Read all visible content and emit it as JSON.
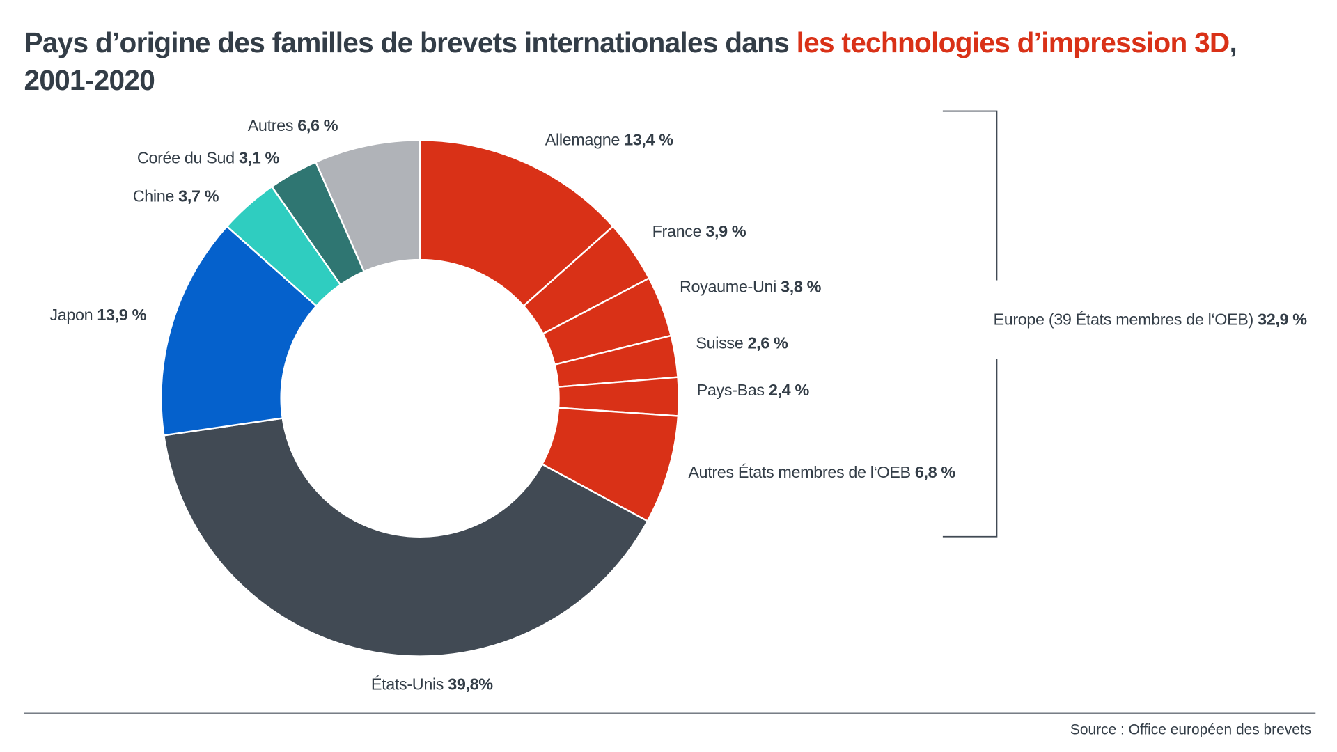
{
  "title": {
    "main": "Pays d’origine des familles de brevets internationales dans ",
    "highlight": "les technologies d’impression 3D",
    "tail": ",",
    "line2": "2001-2020"
  },
  "chart_data": {
    "type": "pie",
    "donut": true,
    "start": "top",
    "direction": "clockwise",
    "series": [
      {
        "name": "Allemagne",
        "value": 13.4,
        "value_label": "13,4 %",
        "color": "#d93117"
      },
      {
        "name": "France",
        "value": 3.9,
        "value_label": "3,9 %",
        "color": "#d93117"
      },
      {
        "name": "Royaume-Uni",
        "value": 3.8,
        "value_label": "3,8 %",
        "color": "#d93117"
      },
      {
        "name": "Suisse",
        "value": 2.6,
        "value_label": "2,6 %",
        "color": "#d93117"
      },
      {
        "name": "Pays-Bas",
        "value": 2.4,
        "value_label": "2,4 %",
        "color": "#d93117"
      },
      {
        "name": "Autres États membres de l‘OEB",
        "value": 6.8,
        "value_label": "6,8 %",
        "color": "#d93117"
      },
      {
        "name": "États-Unis",
        "value": 39.8,
        "value_label": "39,8%",
        "color": "#414a54"
      },
      {
        "name": "Japon",
        "value": 13.9,
        "value_label": "13,9 %",
        "color": "#0561cc"
      },
      {
        "name": "Chine",
        "value": 3.7,
        "value_label": "3,7 %",
        "color": "#2fcdc0"
      },
      {
        "name": "Corée du Sud",
        "value": 3.1,
        "value_label": "3,1 %",
        "color": "#2f7672"
      },
      {
        "name": "Autres",
        "value": 6.6,
        "value_label": "6,6 %",
        "color": "#b0b3b8"
      }
    ],
    "group": {
      "name": "Europe (39 États membres de l‘OEB)",
      "value": 32.9,
      "value_label": "32,9 %"
    }
  },
  "source": "Source : Office européen des brevets"
}
